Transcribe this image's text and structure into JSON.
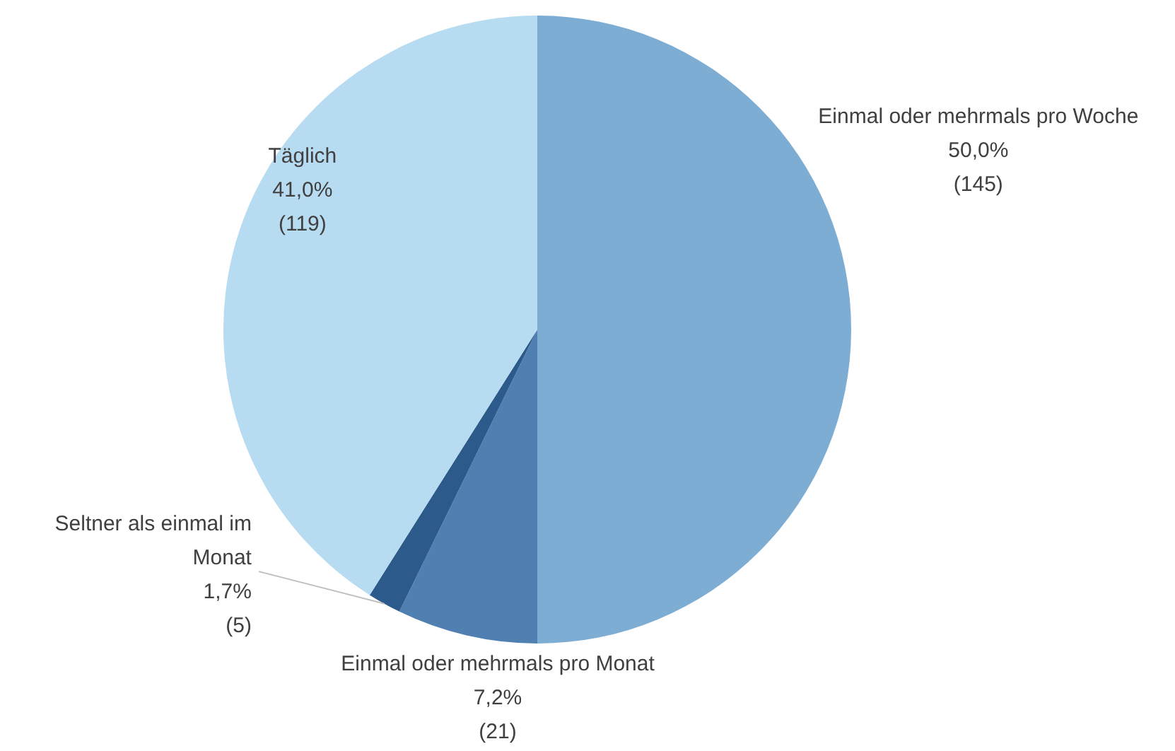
{
  "chart_data": {
    "type": "pie",
    "categories": [
      "Einmal oder mehrmals pro Woche",
      "Einmal oder mehrmals pro Monat",
      "Seltner als einmal im Monat",
      "Täglich"
    ],
    "values": [
      145,
      21,
      5,
      119
    ],
    "colors": [
      "#7eadd4",
      "#4f80b1",
      "#2c5a8a",
      "#b7dbf0"
    ],
    "value_labels": [
      "50,0%\n(145)",
      "7,2%\n(21)",
      "1,7%\n(5)",
      "41,0%\n(119)"
    ]
  }
}
